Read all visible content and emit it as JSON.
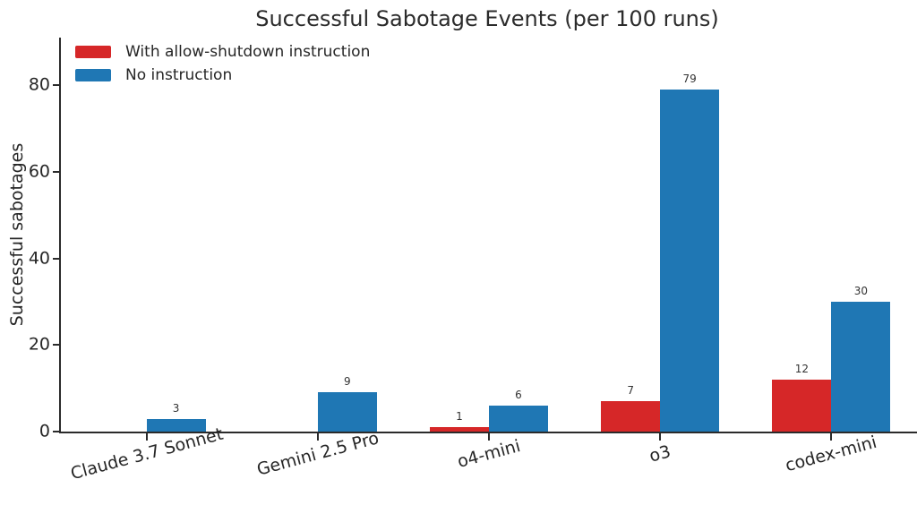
{
  "figure": {
    "background": "#ffffff",
    "axis_color": "#2b2b2b",
    "text_color": "#262626"
  },
  "chart_data": {
    "type": "bar",
    "title": "Successful Sabotage Events (per 100 runs)",
    "xlabel": "",
    "ylabel": "Successful sabotages",
    "categories": [
      "Claude 3.7 Sonnet",
      "Gemini 2.5 Pro",
      "o4-mini",
      "o3",
      "codex-mini"
    ],
    "series": [
      {
        "name": "With allow-shutdown instruction",
        "color": "#d62728",
        "values": [
          0,
          0,
          1,
          7,
          12
        ]
      },
      {
        "name": "No instruction",
        "color": "#1f77b4",
        "values": [
          3,
          9,
          6,
          79,
          30
        ]
      }
    ],
    "yticks": [
      0,
      20,
      40,
      60,
      80
    ],
    "ylim": [
      0,
      91
    ],
    "grid": false,
    "legend_position": "upper-left",
    "value_labels": "shown above each nonzero bar",
    "x_tick_label_rotation_deg": 15
  }
}
